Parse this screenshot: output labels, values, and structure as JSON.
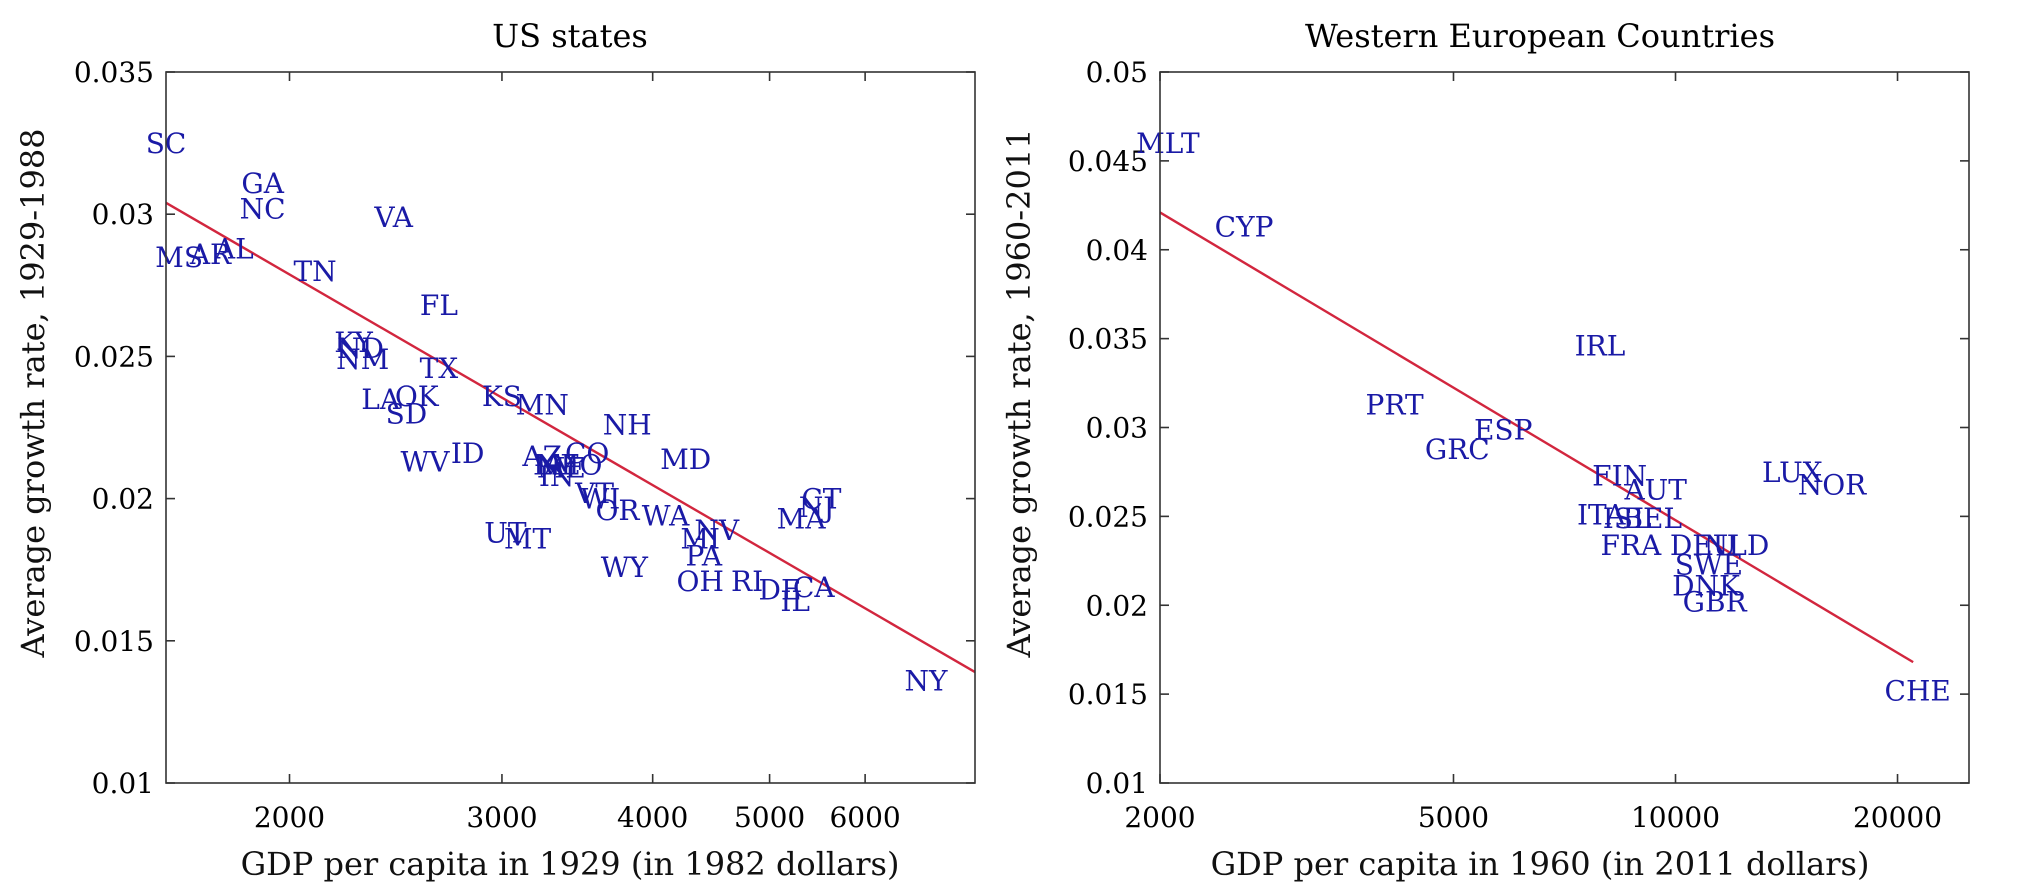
{
  "colors": {
    "points": "#1a1aa6",
    "fit": "#d2263e",
    "axes": "#333333"
  },
  "chart_data": [
    {
      "type": "scatter",
      "title": "US states",
      "xlabel": "GDP per capita in 1929 (in 1982 dollars)",
      "ylabel": "Average growth rate, 1929-1988",
      "xscale": "log",
      "xlim": [
        1580,
        7400
      ],
      "ylim": [
        0.01,
        0.035
      ],
      "xticks": [
        2000,
        3000,
        4000,
        5000,
        6000
      ],
      "xticklabels": [
        "2000",
        "3000",
        "4000",
        "5000",
        "6000"
      ],
      "yticks": [
        0.01,
        0.015,
        0.02,
        0.025,
        0.03,
        0.035
      ],
      "yticklabels": [
        "0.01",
        "0.015",
        "0.02",
        "0.025",
        "0.03",
        "0.035"
      ],
      "grid": false,
      "fit_line": {
        "x": [
          1580,
          7400
        ],
        "y": [
          0.0304,
          0.0139
        ]
      },
      "points": [
        {
          "label": "SC",
          "x": 1580,
          "y": 0.0325
        },
        {
          "label": "GA",
          "x": 1900,
          "y": 0.0311
        },
        {
          "label": "NC",
          "x": 1900,
          "y": 0.0302
        },
        {
          "label": "VA",
          "x": 2440,
          "y": 0.0299
        },
        {
          "label": "MS",
          "x": 1620,
          "y": 0.0285
        },
        {
          "label": "AR",
          "x": 1720,
          "y": 0.0286
        },
        {
          "label": "AL",
          "x": 1800,
          "y": 0.0288
        },
        {
          "label": "TN",
          "x": 2100,
          "y": 0.028
        },
        {
          "label": "FL",
          "x": 2660,
          "y": 0.0268
        },
        {
          "label": "KY",
          "x": 2260,
          "y": 0.0255
        },
        {
          "label": "ND",
          "x": 2290,
          "y": 0.0253
        },
        {
          "label": "NM",
          "x": 2300,
          "y": 0.0249
        },
        {
          "label": "TX",
          "x": 2660,
          "y": 0.0246
        },
        {
          "label": "LA",
          "x": 2380,
          "y": 0.0235
        },
        {
          "label": "OK",
          "x": 2550,
          "y": 0.0236
        },
        {
          "label": "SD",
          "x": 2500,
          "y": 0.023
        },
        {
          "label": "KS",
          "x": 3000,
          "y": 0.0236
        },
        {
          "label": "MN",
          "x": 3240,
          "y": 0.0233
        },
        {
          "label": "NH",
          "x": 3810,
          "y": 0.0226
        },
        {
          "label": "ID",
          "x": 2810,
          "y": 0.0216
        },
        {
          "label": "WV",
          "x": 2590,
          "y": 0.0213
        },
        {
          "label": "AZ",
          "x": 3240,
          "y": 0.0215
        },
        {
          "label": "CO",
          "x": 3530,
          "y": 0.0216
        },
        {
          "label": "MD",
          "x": 4260,
          "y": 0.0214
        },
        {
          "label": "IA",
          "x": 3280,
          "y": 0.0212
        },
        {
          "label": "NE",
          "x": 3340,
          "y": 0.0212
        },
        {
          "label": "ME",
          "x": 3360,
          "y": 0.0211
        },
        {
          "label": "MO",
          "x": 3460,
          "y": 0.0212
        },
        {
          "label": "IN",
          "x": 3330,
          "y": 0.0208
        },
        {
          "label": "VT",
          "x": 3580,
          "y": 0.0202
        },
        {
          "label": "WI",
          "x": 3620,
          "y": 0.02
        },
        {
          "label": "OR",
          "x": 3740,
          "y": 0.0196
        },
        {
          "label": "WA",
          "x": 4100,
          "y": 0.0194
        },
        {
          "label": "NV",
          "x": 4520,
          "y": 0.0189
        },
        {
          "label": "CT",
          "x": 5520,
          "y": 0.02
        },
        {
          "label": "NJ",
          "x": 5470,
          "y": 0.0197
        },
        {
          "label": "MA",
          "x": 5310,
          "y": 0.0193
        },
        {
          "label": "UT",
          "x": 3020,
          "y": 0.0188
        },
        {
          "label": "MT",
          "x": 3150,
          "y": 0.0186
        },
        {
          "label": "MI",
          "x": 4380,
          "y": 0.0186
        },
        {
          "label": "WY",
          "x": 3790,
          "y": 0.0176
        },
        {
          "label": "PA",
          "x": 4410,
          "y": 0.018
        },
        {
          "label": "OH",
          "x": 4380,
          "y": 0.0171
        },
        {
          "label": "RI",
          "x": 4790,
          "y": 0.0171
        },
        {
          "label": "DE",
          "x": 5100,
          "y": 0.0168
        },
        {
          "label": "CA",
          "x": 5440,
          "y": 0.0169
        },
        {
          "label": "IL",
          "x": 5250,
          "y": 0.0164
        },
        {
          "label": "NY",
          "x": 6740,
          "y": 0.0136
        }
      ]
    },
    {
      "type": "scatter",
      "title": "Western European Countries",
      "xlabel": "GDP per capita in 1960 (in 2011 dollars)",
      "ylabel": "Average growth rate, 1960-2011",
      "xscale": "log",
      "xlim": [
        2000,
        25000
      ],
      "ylim": [
        0.01,
        0.05
      ],
      "xticks": [
        2000,
        5000,
        10000,
        20000
      ],
      "xticklabels": [
        "2000",
        "5000",
        "10000",
        "20000"
      ],
      "yticks": [
        0.01,
        0.015,
        0.02,
        0.025,
        0.03,
        0.035,
        0.04,
        0.045,
        0.05
      ],
      "yticklabels": [
        "0.01",
        "0.015",
        "0.02",
        "0.025",
        "0.03",
        "0.035",
        "0.04",
        "0.045",
        "0.05"
      ],
      "grid": false,
      "fit_line": {
        "x": [
          2000,
          21000
        ],
        "y": [
          0.0421,
          0.0168
        ]
      },
      "points": [
        {
          "label": "MLT",
          "x": 2050,
          "y": 0.046
        },
        {
          "label": "CYP",
          "x": 2600,
          "y": 0.0413
        },
        {
          "label": "IRL",
          "x": 7900,
          "y": 0.0346
        },
        {
          "label": "PRT",
          "x": 4160,
          "y": 0.0313
        },
        {
          "label": "ESP",
          "x": 5840,
          "y": 0.0299
        },
        {
          "label": "GRC",
          "x": 5060,
          "y": 0.0288
        },
        {
          "label": "LUX",
          "x": 14400,
          "y": 0.0275
        },
        {
          "label": "FIN",
          "x": 8400,
          "y": 0.0273
        },
        {
          "label": "NOR",
          "x": 16300,
          "y": 0.0268
        },
        {
          "label": "AUT",
          "x": 9400,
          "y": 0.0265
        },
        {
          "label": "ITA",
          "x": 7930,
          "y": 0.0251
        },
        {
          "label": "BEL",
          "x": 9300,
          "y": 0.0249
        },
        {
          "label": "ISL",
          "x": 8600,
          "y": 0.0249
        },
        {
          "label": "FRA",
          "x": 8700,
          "y": 0.0234
        },
        {
          "label": "DEU",
          "x": 10900,
          "y": 0.0234
        },
        {
          "label": "NLD",
          "x": 12100,
          "y": 0.0234
        },
        {
          "label": "SWE",
          "x": 11100,
          "y": 0.0223
        },
        {
          "label": "DNK",
          "x": 11000,
          "y": 0.0211
        },
        {
          "label": "GBR",
          "x": 11300,
          "y": 0.0202
        },
        {
          "label": "CHE",
          "x": 21300,
          "y": 0.0152
        }
      ]
    }
  ]
}
